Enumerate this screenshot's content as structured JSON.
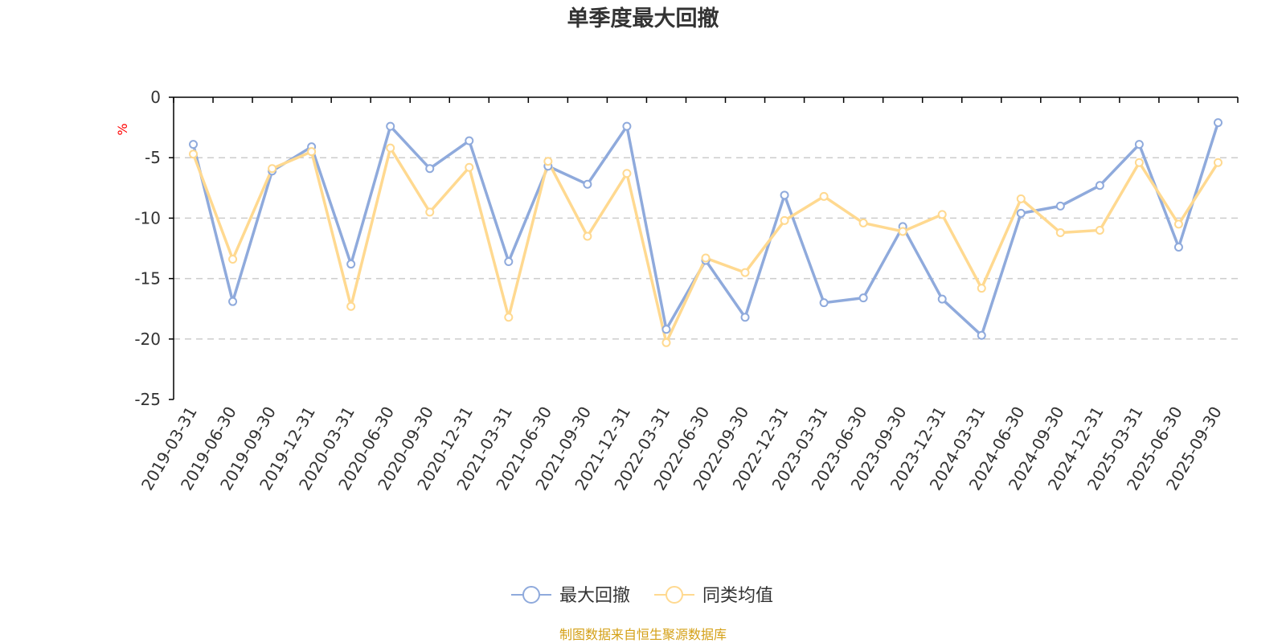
{
  "chart_data": {
    "type": "line",
    "title": "单季度最大回撤",
    "ylabel": "%",
    "ylim": [
      -25,
      0
    ],
    "yticks": [
      0,
      -5,
      -10,
      -15,
      -20,
      -25
    ],
    "grid": true,
    "categories": [
      "2019-03-31",
      "2019-06-30",
      "2019-09-30",
      "2019-12-31",
      "2020-03-31",
      "2020-06-30",
      "2020-09-30",
      "2020-12-31",
      "2021-03-31",
      "2021-06-30",
      "2021-09-30",
      "2021-12-31",
      "2022-03-31",
      "2022-06-30",
      "2022-09-30",
      "2022-12-31",
      "2023-03-31",
      "2023-06-30",
      "2023-09-30",
      "2023-12-31",
      "2024-03-31",
      "2024-06-30",
      "2024-09-30",
      "2024-12-31",
      "2025-03-31",
      "2025-06-30",
      "2025-09-30"
    ],
    "series": [
      {
        "name": "最大回撤",
        "color": "#8faadc",
        "values": [
          -3.9,
          -16.9,
          -6.1,
          -4.1,
          -13.8,
          -2.4,
          -5.9,
          -3.6,
          -13.6,
          -5.7,
          -7.2,
          -2.4,
          -19.2,
          -13.5,
          -18.2,
          -8.1,
          -17.0,
          -16.6,
          -10.7,
          -16.7,
          -19.7,
          -9.6,
          -9.0,
          -7.3,
          -3.9,
          -12.4,
          -2.1
        ]
      },
      {
        "name": "同类均值",
        "color": "#ffd990",
        "values": [
          -4.7,
          -13.4,
          -5.9,
          -4.5,
          -17.3,
          -4.2,
          -9.5,
          -5.8,
          -18.2,
          -5.3,
          -11.5,
          -6.3,
          -20.3,
          -13.3,
          -14.5,
          -10.2,
          -8.2,
          -10.4,
          -11.1,
          -9.7,
          -15.8,
          -8.4,
          -11.2,
          -11.0,
          -5.4,
          -10.5,
          -5.4
        ]
      }
    ],
    "legend": "bottom-center",
    "source_note": "制图数据来自恒生聚源数据库"
  },
  "colors": {
    "title": "#333333",
    "axis": "#000000",
    "grid": "#cccccc",
    "unit": "#ff0000",
    "source": "#d4a017"
  }
}
